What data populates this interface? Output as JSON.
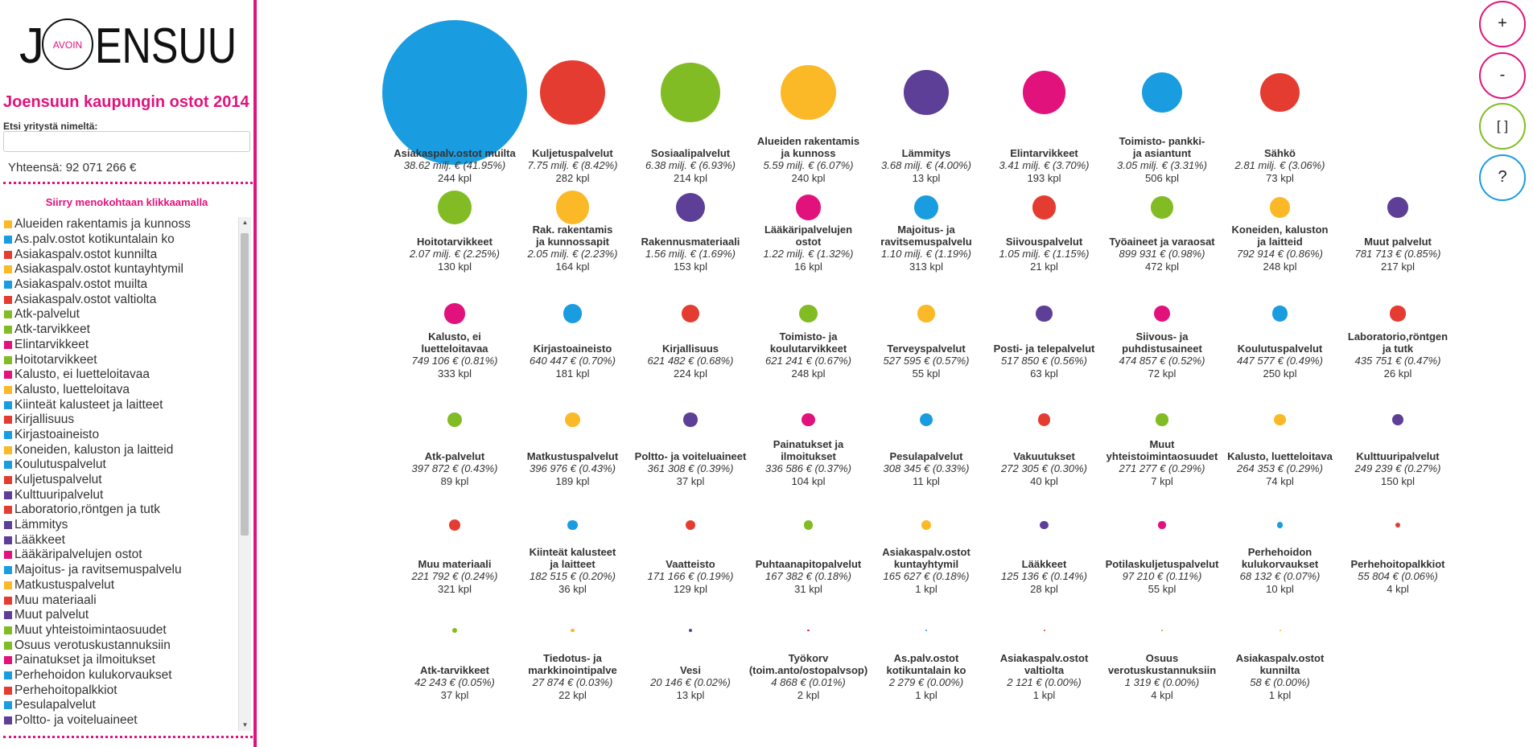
{
  "logo": {
    "before": "J",
    "ring": "AVOIN",
    "after": "ENSUU"
  },
  "title": "Joensuun kaupungin ostot 2014",
  "search": {
    "label": "Etsi yritystä nimeltä:",
    "placeholder": "",
    "value": ""
  },
  "total": "Yhteensä: 92 071 266 €",
  "nav_hint": "Siirry menokohtaan klikkaamalla",
  "controls": {
    "zoom_in": "+",
    "zoom_out": "-",
    "fit": "[ ]",
    "help": "?"
  },
  "colors": {
    "accent": "#e2127c",
    "blue": "#1a9ce0",
    "red": "#e53c31",
    "green": "#82bc25",
    "yellow": "#fbb928",
    "purple": "#5d3f97",
    "pink": "#e2127c"
  },
  "category_list": [
    {
      "label": "Alueiden rakentamis ja kunnoss",
      "color": "#fbb928"
    },
    {
      "label": "As.palv.ostot kotikuntalain ko",
      "color": "#1a9ce0"
    },
    {
      "label": "Asiakaspalv.ostot kunnilta",
      "color": "#e53c31"
    },
    {
      "label": "Asiakaspalv.ostot kuntayhtymil",
      "color": "#fbb928"
    },
    {
      "label": "Asiakaspalv.ostot muilta",
      "color": "#1a9ce0"
    },
    {
      "label": "Asiakaspalv.ostot valtiolta",
      "color": "#e53c31"
    },
    {
      "label": "Atk-palvelut",
      "color": "#82bc25"
    },
    {
      "label": "Atk-tarvikkeet",
      "color": "#82bc25"
    },
    {
      "label": "Elintarvikkeet",
      "color": "#e2127c"
    },
    {
      "label": "Hoitotarvikkeet",
      "color": "#82bc25"
    },
    {
      "label": "Kalusto, ei luetteloitavaa",
      "color": "#e2127c"
    },
    {
      "label": "Kalusto, luetteloitava",
      "color": "#fbb928"
    },
    {
      "label": "Kiinteät kalusteet ja laitteet",
      "color": "#1a9ce0"
    },
    {
      "label": "Kirjallisuus",
      "color": "#e53c31"
    },
    {
      "label": "Kirjastoaineisto",
      "color": "#1a9ce0"
    },
    {
      "label": "Koneiden, kaluston ja laitteid",
      "color": "#fbb928"
    },
    {
      "label": "Koulutuspalvelut",
      "color": "#1a9ce0"
    },
    {
      "label": "Kuljetuspalvelut",
      "color": "#e53c31"
    },
    {
      "label": "Kulttuuripalvelut",
      "color": "#5d3f97"
    },
    {
      "label": "Laboratorio,röntgen ja tutk",
      "color": "#e53c31"
    },
    {
      "label": "Lämmitys",
      "color": "#5d3f97"
    },
    {
      "label": "Lääkkeet",
      "color": "#5d3f97"
    },
    {
      "label": "Lääkäripalvelujen ostot",
      "color": "#e2127c"
    },
    {
      "label": "Majoitus- ja ravitsemuspalvelu",
      "color": "#1a9ce0"
    },
    {
      "label": "Matkustuspalvelut",
      "color": "#fbb928"
    },
    {
      "label": "Muu materiaali",
      "color": "#e53c31"
    },
    {
      "label": "Muut palvelut",
      "color": "#5d3f97"
    },
    {
      "label": "Muut yhteistoimintaosuudet",
      "color": "#82bc25"
    },
    {
      "label": "Osuus verotuskustannuksiin",
      "color": "#82bc25"
    },
    {
      "label": "Painatukset ja ilmoitukset",
      "color": "#e2127c"
    },
    {
      "label": "Perhehoidon kulukorvaukset",
      "color": "#1a9ce0"
    },
    {
      "label": "Perhehoitopalkkiot",
      "color": "#e53c31"
    },
    {
      "label": "Pesulapalvelut",
      "color": "#1a9ce0"
    },
    {
      "label": "Poltto- ja voiteluaineet",
      "color": "#5d3f97"
    }
  ],
  "chart_data": {
    "type": "bubble",
    "value_unit": "€",
    "items": [
      {
        "name": "Asiakaspalv.ostot muilta",
        "value": 38620000,
        "value_text": "38.62 milj. € (41.95%)",
        "count": "244 kpl",
        "color": "#1a9ce0"
      },
      {
        "name": "Kuljetuspalvelut",
        "value": 7750000,
        "value_text": "7.75 milj. € (8.42%)",
        "count": "282 kpl",
        "color": "#e53c31"
      },
      {
        "name": "Sosiaalipalvelut",
        "value": 6380000,
        "value_text": "6.38 milj. € (6.93%)",
        "count": "214 kpl",
        "color": "#82bc25"
      },
      {
        "name": "Alueiden rakentamis\nja kunnoss",
        "value": 5590000,
        "value_text": "5.59 milj. € (6.07%)",
        "count": "240 kpl",
        "color": "#fbb928"
      },
      {
        "name": "Lämmitys",
        "value": 3680000,
        "value_text": "3.68 milj. € (4.00%)",
        "count": "13 kpl",
        "color": "#5d3f97"
      },
      {
        "name": "Elintarvikkeet",
        "value": 3410000,
        "value_text": "3.41 milj. € (3.70%)",
        "count": "193 kpl",
        "color": "#e2127c"
      },
      {
        "name": "Toimisto- pankki-\nja asiantunt",
        "value": 3050000,
        "value_text": "3.05 milj. € (3.31%)",
        "count": "506 kpl",
        "color": "#1a9ce0"
      },
      {
        "name": "Sähkö",
        "value": 2810000,
        "value_text": "2.81 milj. € (3.06%)",
        "count": "73 kpl",
        "color": "#e53c31"
      },
      {
        "name": "Hoitotarvikkeet",
        "value": 2070000,
        "value_text": "2.07 milj. € (2.25%)",
        "count": "130 kpl",
        "color": "#82bc25"
      },
      {
        "name": "Rak. rakentamis\nja kunnossapit",
        "value": 2050000,
        "value_text": "2.05 milj. € (2.23%)",
        "count": "164 kpl",
        "color": "#fbb928"
      },
      {
        "name": "Rakennusmateriaali",
        "value": 1560000,
        "value_text": "1.56 milj. € (1.69%)",
        "count": "153 kpl",
        "color": "#5d3f97"
      },
      {
        "name": "Lääkäripalvelujen\nostot",
        "value": 1220000,
        "value_text": "1.22 milj. € (1.32%)",
        "count": "16 kpl",
        "color": "#e2127c"
      },
      {
        "name": "Majoitus- ja\nravitsemuspalvelu",
        "value": 1100000,
        "value_text": "1.10 milj. € (1.19%)",
        "count": "313 kpl",
        "color": "#1a9ce0"
      },
      {
        "name": "Siivouspalvelut",
        "value": 1050000,
        "value_text": "1.05 milj. € (1.15%)",
        "count": "21 kpl",
        "color": "#e53c31"
      },
      {
        "name": "Työaineet ja varaosat",
        "value": 899931,
        "value_text": "899 931 € (0.98%)",
        "count": "472 kpl",
        "color": "#82bc25"
      },
      {
        "name": "Koneiden, kaluston\nja laitteid",
        "value": 792914,
        "value_text": "792 914 € (0.86%)",
        "count": "248 kpl",
        "color": "#fbb928"
      },
      {
        "name": "Muut palvelut",
        "value": 781713,
        "value_text": "781 713 € (0.85%)",
        "count": "217 kpl",
        "color": "#5d3f97"
      },
      {
        "name": "Kalusto, ei\nluetteloitavaa",
        "value": 749106,
        "value_text": "749 106 € (0.81%)",
        "count": "333 kpl",
        "color": "#e2127c"
      },
      {
        "name": "Kirjastoaineisto",
        "value": 640447,
        "value_text": "640 447 € (0.70%)",
        "count": "181 kpl",
        "color": "#1a9ce0"
      },
      {
        "name": "Kirjallisuus",
        "value": 621482,
        "value_text": "621 482 € (0.68%)",
        "count": "224 kpl",
        "color": "#e53c31"
      },
      {
        "name": "Toimisto- ja\nkoulutarvikkeet",
        "value": 621241,
        "value_text": "621 241 € (0.67%)",
        "count": "248 kpl",
        "color": "#82bc25"
      },
      {
        "name": "Terveyspalvelut",
        "value": 527595,
        "value_text": "527 595 € (0.57%)",
        "count": "55 kpl",
        "color": "#fbb928"
      },
      {
        "name": "Posti- ja telepalvelut",
        "value": 517850,
        "value_text": "517 850 € (0.56%)",
        "count": "63 kpl",
        "color": "#5d3f97"
      },
      {
        "name": "Siivous- ja\npuhdistusaineet",
        "value": 474857,
        "value_text": "474 857 € (0.52%)",
        "count": "72 kpl",
        "color": "#e2127c"
      },
      {
        "name": "Koulutuspalvelut",
        "value": 447577,
        "value_text": "447 577 € (0.49%)",
        "count": "250 kpl",
        "color": "#1a9ce0"
      },
      {
        "name": "Laboratorio,röntgen\nja tutk",
        "value": 435751,
        "value_text": "435 751 € (0.47%)",
        "count": "26 kpl",
        "color": "#e53c31"
      },
      {
        "name": "Atk-palvelut",
        "value": 397872,
        "value_text": "397 872 € (0.43%)",
        "count": "89 kpl",
        "color": "#82bc25"
      },
      {
        "name": "Matkustuspalvelut",
        "value": 396976,
        "value_text": "396 976 € (0.43%)",
        "count": "189 kpl",
        "color": "#fbb928"
      },
      {
        "name": "Poltto- ja voiteluaineet",
        "value": 361308,
        "value_text": "361 308 € (0.39%)",
        "count": "37 kpl",
        "color": "#5d3f97"
      },
      {
        "name": "Painatukset ja\nilmoitukset",
        "value": 336586,
        "value_text": "336 586 € (0.37%)",
        "count": "104 kpl",
        "color": "#e2127c"
      },
      {
        "name": "Pesulapalvelut",
        "value": 308345,
        "value_text": "308 345 € (0.33%)",
        "count": "11 kpl",
        "color": "#1a9ce0"
      },
      {
        "name": "Vakuutukset",
        "value": 272305,
        "value_text": "272 305 € (0.30%)",
        "count": "40 kpl",
        "color": "#e53c31"
      },
      {
        "name": "Muut\nyhteistoimintaosuudet",
        "value": 271277,
        "value_text": "271 277 € (0.29%)",
        "count": "7 kpl",
        "color": "#82bc25"
      },
      {
        "name": "Kalusto, luetteloitava",
        "value": 264353,
        "value_text": "264 353 € (0.29%)",
        "count": "74 kpl",
        "color": "#fbb928"
      },
      {
        "name": "Kulttuuripalvelut",
        "value": 249239,
        "value_text": "249 239 € (0.27%)",
        "count": "150 kpl",
        "color": "#5d3f97"
      },
      {
        "name": "Muu materiaali",
        "value": 221792,
        "value_text": "221 792 € (0.24%)",
        "count": "321 kpl",
        "color": "#e53c31"
      },
      {
        "name": "Kiinteät kalusteet\nja laitteet",
        "value": 182515,
        "value_text": "182 515 € (0.20%)",
        "count": "36 kpl",
        "color": "#1a9ce0"
      },
      {
        "name": "Vaatteisto",
        "value": 171166,
        "value_text": "171 166 € (0.19%)",
        "count": "129 kpl",
        "color": "#e53c31"
      },
      {
        "name": "Puhtaanapitopalvelut",
        "value": 167382,
        "value_text": "167 382 € (0.18%)",
        "count": "31 kpl",
        "color": "#82bc25"
      },
      {
        "name": "Asiakaspalv.ostot\nkuntayhtymil",
        "value": 165627,
        "value_text": "165 627 € (0.18%)",
        "count": "1 kpl",
        "color": "#fbb928"
      },
      {
        "name": "Lääkkeet",
        "value": 125136,
        "value_text": "125 136 € (0.14%)",
        "count": "28 kpl",
        "color": "#5d3f97"
      },
      {
        "name": "Potilaskuljetuspalvelut",
        "value": 97210,
        "value_text": "97 210 € (0.11%)",
        "count": "55 kpl",
        "color": "#e2127c"
      },
      {
        "name": "Perhehoidon\nkulukorvaukset",
        "value": 68132,
        "value_text": "68 132 € (0.07%)",
        "count": "10 kpl",
        "color": "#1a9ce0"
      },
      {
        "name": "Perhehoitopalkkiot",
        "value": 55804,
        "value_text": "55 804 € (0.06%)",
        "count": "4 kpl",
        "color": "#e53c31"
      },
      {
        "name": "Atk-tarvikkeet",
        "value": 42243,
        "value_text": "42 243 € (0.05%)",
        "count": "37 kpl",
        "color": "#82bc25"
      },
      {
        "name": "Tiedotus- ja\nmarkkinointipalve",
        "value": 27874,
        "value_text": "27 874 € (0.03%)",
        "count": "22 kpl",
        "color": "#fbb928"
      },
      {
        "name": "Vesi",
        "value": 20146,
        "value_text": "20 146 € (0.02%)",
        "count": "13 kpl",
        "color": "#5d3f97"
      },
      {
        "name": "Työkorv\n(toim.anto/ostopalvsop)",
        "value": 4868,
        "value_text": "4 868 € (0.01%)",
        "count": "2 kpl",
        "color": "#e2127c"
      },
      {
        "name": "As.palv.ostot\nkotikuntalain ko",
        "value": 2279,
        "value_text": "2 279 € (0.00%)",
        "count": "1 kpl",
        "color": "#1a9ce0"
      },
      {
        "name": "Asiakaspalv.ostot\nvaltiolta",
        "value": 2121,
        "value_text": "2 121 € (0.00%)",
        "count": "1 kpl",
        "color": "#e53c31"
      },
      {
        "name": "Osuus\nverotuskustannuksiin",
        "value": 1319,
        "value_text": "1 319 € (0.00%)",
        "count": "4 kpl",
        "color": "#82bc25"
      },
      {
        "name": "Asiakaspalv.ostot\nkunnilta",
        "value": 58,
        "value_text": "58 € (0.00%)",
        "count": "1 kpl",
        "color": "#fbb928"
      }
    ]
  }
}
